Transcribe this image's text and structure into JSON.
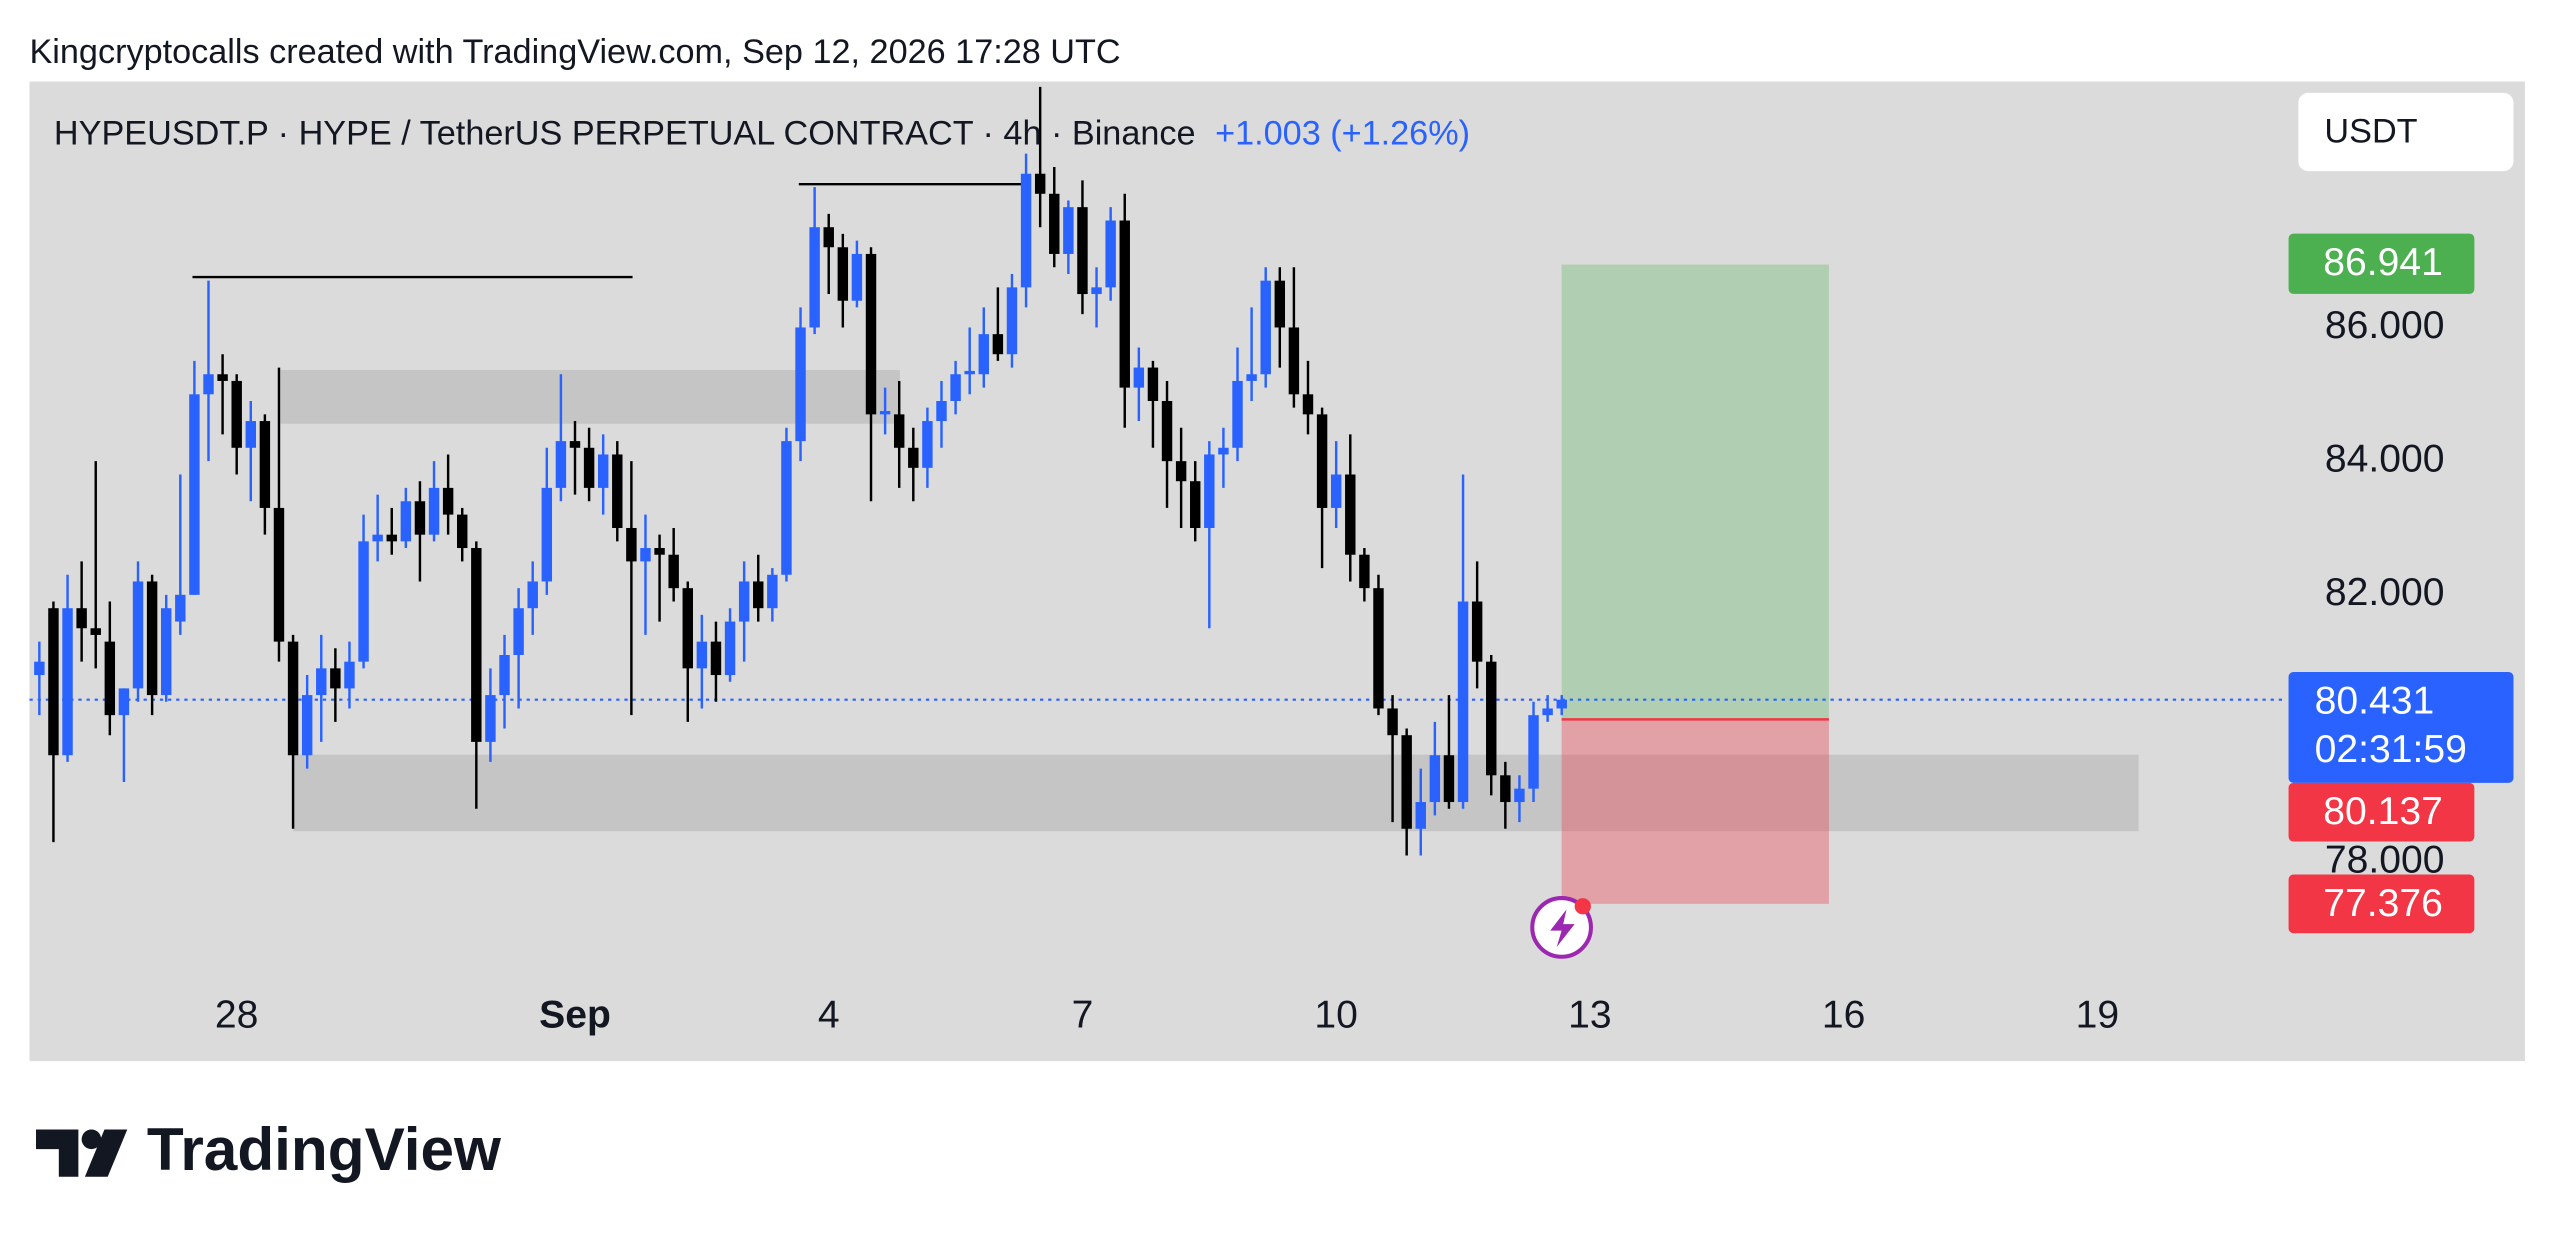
{
  "header": {
    "attribution": "Kingcryptocalls created with TradingView.com, Sep 12, 2026 17:28 UTC",
    "logo": "TradingView"
  },
  "toolbar": {
    "currency_button": "USDT"
  },
  "chart_data": {
    "type": "candlestick",
    "title": "HYPEUSDT.P · HYPE / TetherUS PERPETUAL CONTRACT · 4h · Binance",
    "change": "+1.003 (+1.26%)",
    "up_color": "#2962ff",
    "down_color": "#000000",
    "ylim": [
      76.39,
      89.68
    ],
    "yticks": [
      {
        "value": 78,
        "label": "78.000"
      },
      {
        "value": 82,
        "label": "82.000"
      },
      {
        "value": 84,
        "label": "84.000"
      },
      {
        "value": 86,
        "label": "86.000"
      }
    ],
    "xlim": [
      -0.7,
      159.1
    ],
    "xticks": [
      {
        "value": 14,
        "label": "28"
      },
      {
        "value": 38,
        "label": "Sep"
      },
      {
        "value": 56,
        "label": "4"
      },
      {
        "value": 74,
        "label": "7"
      },
      {
        "value": 92,
        "label": "10"
      },
      {
        "value": 110,
        "label": "13"
      },
      {
        "value": 128,
        "label": "16"
      },
      {
        "value": 146,
        "label": "19"
      }
    ],
    "ohlc": [
      [
        80.8,
        81.3,
        80.2,
        81.0
      ],
      [
        81.8,
        81.9,
        78.3,
        79.6
      ],
      [
        79.6,
        82.3,
        79.5,
        81.8
      ],
      [
        81.8,
        82.5,
        81.0,
        81.5
      ],
      [
        81.5,
        84.0,
        80.9,
        81.4
      ],
      [
        81.3,
        81.9,
        79.9,
        80.2
      ],
      [
        80.2,
        80.6,
        79.2,
        80.6
      ],
      [
        80.6,
        82.5,
        80.4,
        82.2
      ],
      [
        82.2,
        82.3,
        80.2,
        80.5
      ],
      [
        80.5,
        82.0,
        80.4,
        81.8
      ],
      [
        81.6,
        83.8,
        81.4,
        82.0
      ],
      [
        82.0,
        85.5,
        82.0,
        85.0
      ],
      [
        85.0,
        86.7,
        84.0,
        85.3
      ],
      [
        85.3,
        85.6,
        84.4,
        85.2
      ],
      [
        85.2,
        85.3,
        83.8,
        84.2
      ],
      [
        84.2,
        84.9,
        83.4,
        84.6
      ],
      [
        84.6,
        84.7,
        82.9,
        83.3
      ],
      [
        83.3,
        85.4,
        81.0,
        81.3
      ],
      [
        81.3,
        81.4,
        78.5,
        79.6
      ],
      [
        79.6,
        80.8,
        79.4,
        80.5
      ],
      [
        80.5,
        81.4,
        79.8,
        80.9
      ],
      [
        80.9,
        81.2,
        80.1,
        80.6
      ],
      [
        80.6,
        81.3,
        80.3,
        81.0
      ],
      [
        81.0,
        83.2,
        80.9,
        82.8
      ],
      [
        82.8,
        83.5,
        82.5,
        82.9
      ],
      [
        82.9,
        83.3,
        82.6,
        82.8
      ],
      [
        82.8,
        83.6,
        82.7,
        83.4
      ],
      [
        83.4,
        83.7,
        82.2,
        82.9
      ],
      [
        82.9,
        84.0,
        82.8,
        83.6
      ],
      [
        83.6,
        84.1,
        82.9,
        83.2
      ],
      [
        83.2,
        83.3,
        82.5,
        82.7
      ],
      [
        82.7,
        82.8,
        78.8,
        79.8
      ],
      [
        79.8,
        80.9,
        79.5,
        80.5
      ],
      [
        80.5,
        81.4,
        80.0,
        81.1
      ],
      [
        81.1,
        82.1,
        80.3,
        81.8
      ],
      [
        81.8,
        82.5,
        81.4,
        82.2
      ],
      [
        82.2,
        84.2,
        82.0,
        83.6
      ],
      [
        83.6,
        85.3,
        83.4,
        84.3
      ],
      [
        84.3,
        84.6,
        83.5,
        84.2
      ],
      [
        84.2,
        84.5,
        83.4,
        83.6
      ],
      [
        83.6,
        84.4,
        83.2,
        84.1
      ],
      [
        84.1,
        84.3,
        82.8,
        83.0
      ],
      [
        83.0,
        84.0,
        80.2,
        82.5
      ],
      [
        82.5,
        83.2,
        81.4,
        82.7
      ],
      [
        82.7,
        82.9,
        81.6,
        82.6
      ],
      [
        82.6,
        83.0,
        81.9,
        82.1
      ],
      [
        82.1,
        82.2,
        80.1,
        80.9
      ],
      [
        80.9,
        81.7,
        80.3,
        81.3
      ],
      [
        81.3,
        81.6,
        80.4,
        80.8
      ],
      [
        80.8,
        81.8,
        80.7,
        81.6
      ],
      [
        81.6,
        82.5,
        81.0,
        82.2
      ],
      [
        82.2,
        82.6,
        81.6,
        81.8
      ],
      [
        81.8,
        82.4,
        81.6,
        82.3
      ],
      [
        82.3,
        84.5,
        82.2,
        84.3
      ],
      [
        84.3,
        86.3,
        84.0,
        86.0
      ],
      [
        86.0,
        88.1,
        85.9,
        87.5
      ],
      [
        87.5,
        87.7,
        86.5,
        87.2
      ],
      [
        87.2,
        87.4,
        86.0,
        86.4
      ],
      [
        86.4,
        87.3,
        86.3,
        87.1
      ],
      [
        87.1,
        87.2,
        83.4,
        84.7
      ],
      [
        84.7,
        85.1,
        84.4,
        84.75
      ],
      [
        84.7,
        85.2,
        83.6,
        84.2
      ],
      [
        84.2,
        84.5,
        83.4,
        83.9
      ],
      [
        83.9,
        84.8,
        83.6,
        84.6
      ],
      [
        84.6,
        85.2,
        84.2,
        84.9
      ],
      [
        84.9,
        85.5,
        84.7,
        85.3
      ],
      [
        85.3,
        86.0,
        85.0,
        85.35
      ],
      [
        85.3,
        86.3,
        85.1,
        85.9
      ],
      [
        85.9,
        86.6,
        85.5,
        85.6
      ],
      [
        85.6,
        86.8,
        85.4,
        86.6
      ],
      [
        86.6,
        88.6,
        86.3,
        88.3
      ],
      [
        88.3,
        89.6,
        87.5,
        88.0
      ],
      [
        88.0,
        88.4,
        86.9,
        87.1
      ],
      [
        87.1,
        87.9,
        86.8,
        87.8
      ],
      [
        87.8,
        88.2,
        86.2,
        86.5
      ],
      [
        86.5,
        86.9,
        86.0,
        86.6
      ],
      [
        86.6,
        87.8,
        86.4,
        87.6
      ],
      [
        87.6,
        88.0,
        84.5,
        85.1
      ],
      [
        85.1,
        85.7,
        84.6,
        85.4
      ],
      [
        85.4,
        85.5,
        84.2,
        84.9
      ],
      [
        84.9,
        85.2,
        83.3,
        84.0
      ],
      [
        84.0,
        84.5,
        83.0,
        83.7
      ],
      [
        83.7,
        84.0,
        82.8,
        83.0
      ],
      [
        83.0,
        84.3,
        81.5,
        84.1
      ],
      [
        84.1,
        84.5,
        83.6,
        84.2
      ],
      [
        84.2,
        85.7,
        84.0,
        85.2
      ],
      [
        85.2,
        86.3,
        84.9,
        85.3
      ],
      [
        85.3,
        86.9,
        85.1,
        86.7
      ],
      [
        86.7,
        86.9,
        85.4,
        86.0
      ],
      [
        86.0,
        86.9,
        84.8,
        85.0
      ],
      [
        85.0,
        85.5,
        84.4,
        84.7
      ],
      [
        84.7,
        84.8,
        82.4,
        83.3
      ],
      [
        83.3,
        84.3,
        83.0,
        83.8
      ],
      [
        83.8,
        84.4,
        82.2,
        82.6
      ],
      [
        82.6,
        82.7,
        81.9,
        82.1
      ],
      [
        82.1,
        82.3,
        80.2,
        80.3
      ],
      [
        80.3,
        80.5,
        78.6,
        79.9
      ],
      [
        79.9,
        80.0,
        78.1,
        78.5
      ],
      [
        78.5,
        79.4,
        78.1,
        78.9
      ],
      [
        78.9,
        80.1,
        78.7,
        79.6
      ],
      [
        79.6,
        80.5,
        78.8,
        78.9
      ],
      [
        78.9,
        83.8,
        78.8,
        81.9
      ],
      [
        81.9,
        82.5,
        80.6,
        81.0
      ],
      [
        81.0,
        81.1,
        79.0,
        79.3
      ],
      [
        79.3,
        79.5,
        78.5,
        78.9
      ],
      [
        78.9,
        79.3,
        78.6,
        79.1
      ],
      [
        79.1,
        80.4,
        78.9,
        80.2
      ],
      [
        80.2,
        80.5,
        80.1,
        80.3
      ],
      [
        80.3,
        80.5,
        80.2,
        80.431
      ]
    ],
    "last_price": {
      "value": 80.431,
      "label": "80.431",
      "countdown": "02:31:59",
      "color": "#2962ff"
    },
    "position": {
      "target": {
        "value": 86.941,
        "label": "86.941",
        "color": "#4caf50"
      },
      "entry": {
        "value": 80.137,
        "label": "80.137",
        "color": "#f23645"
      },
      "stop": {
        "value": 77.376,
        "label": "77.376",
        "color": "#f23645"
      }
    }
  }
}
